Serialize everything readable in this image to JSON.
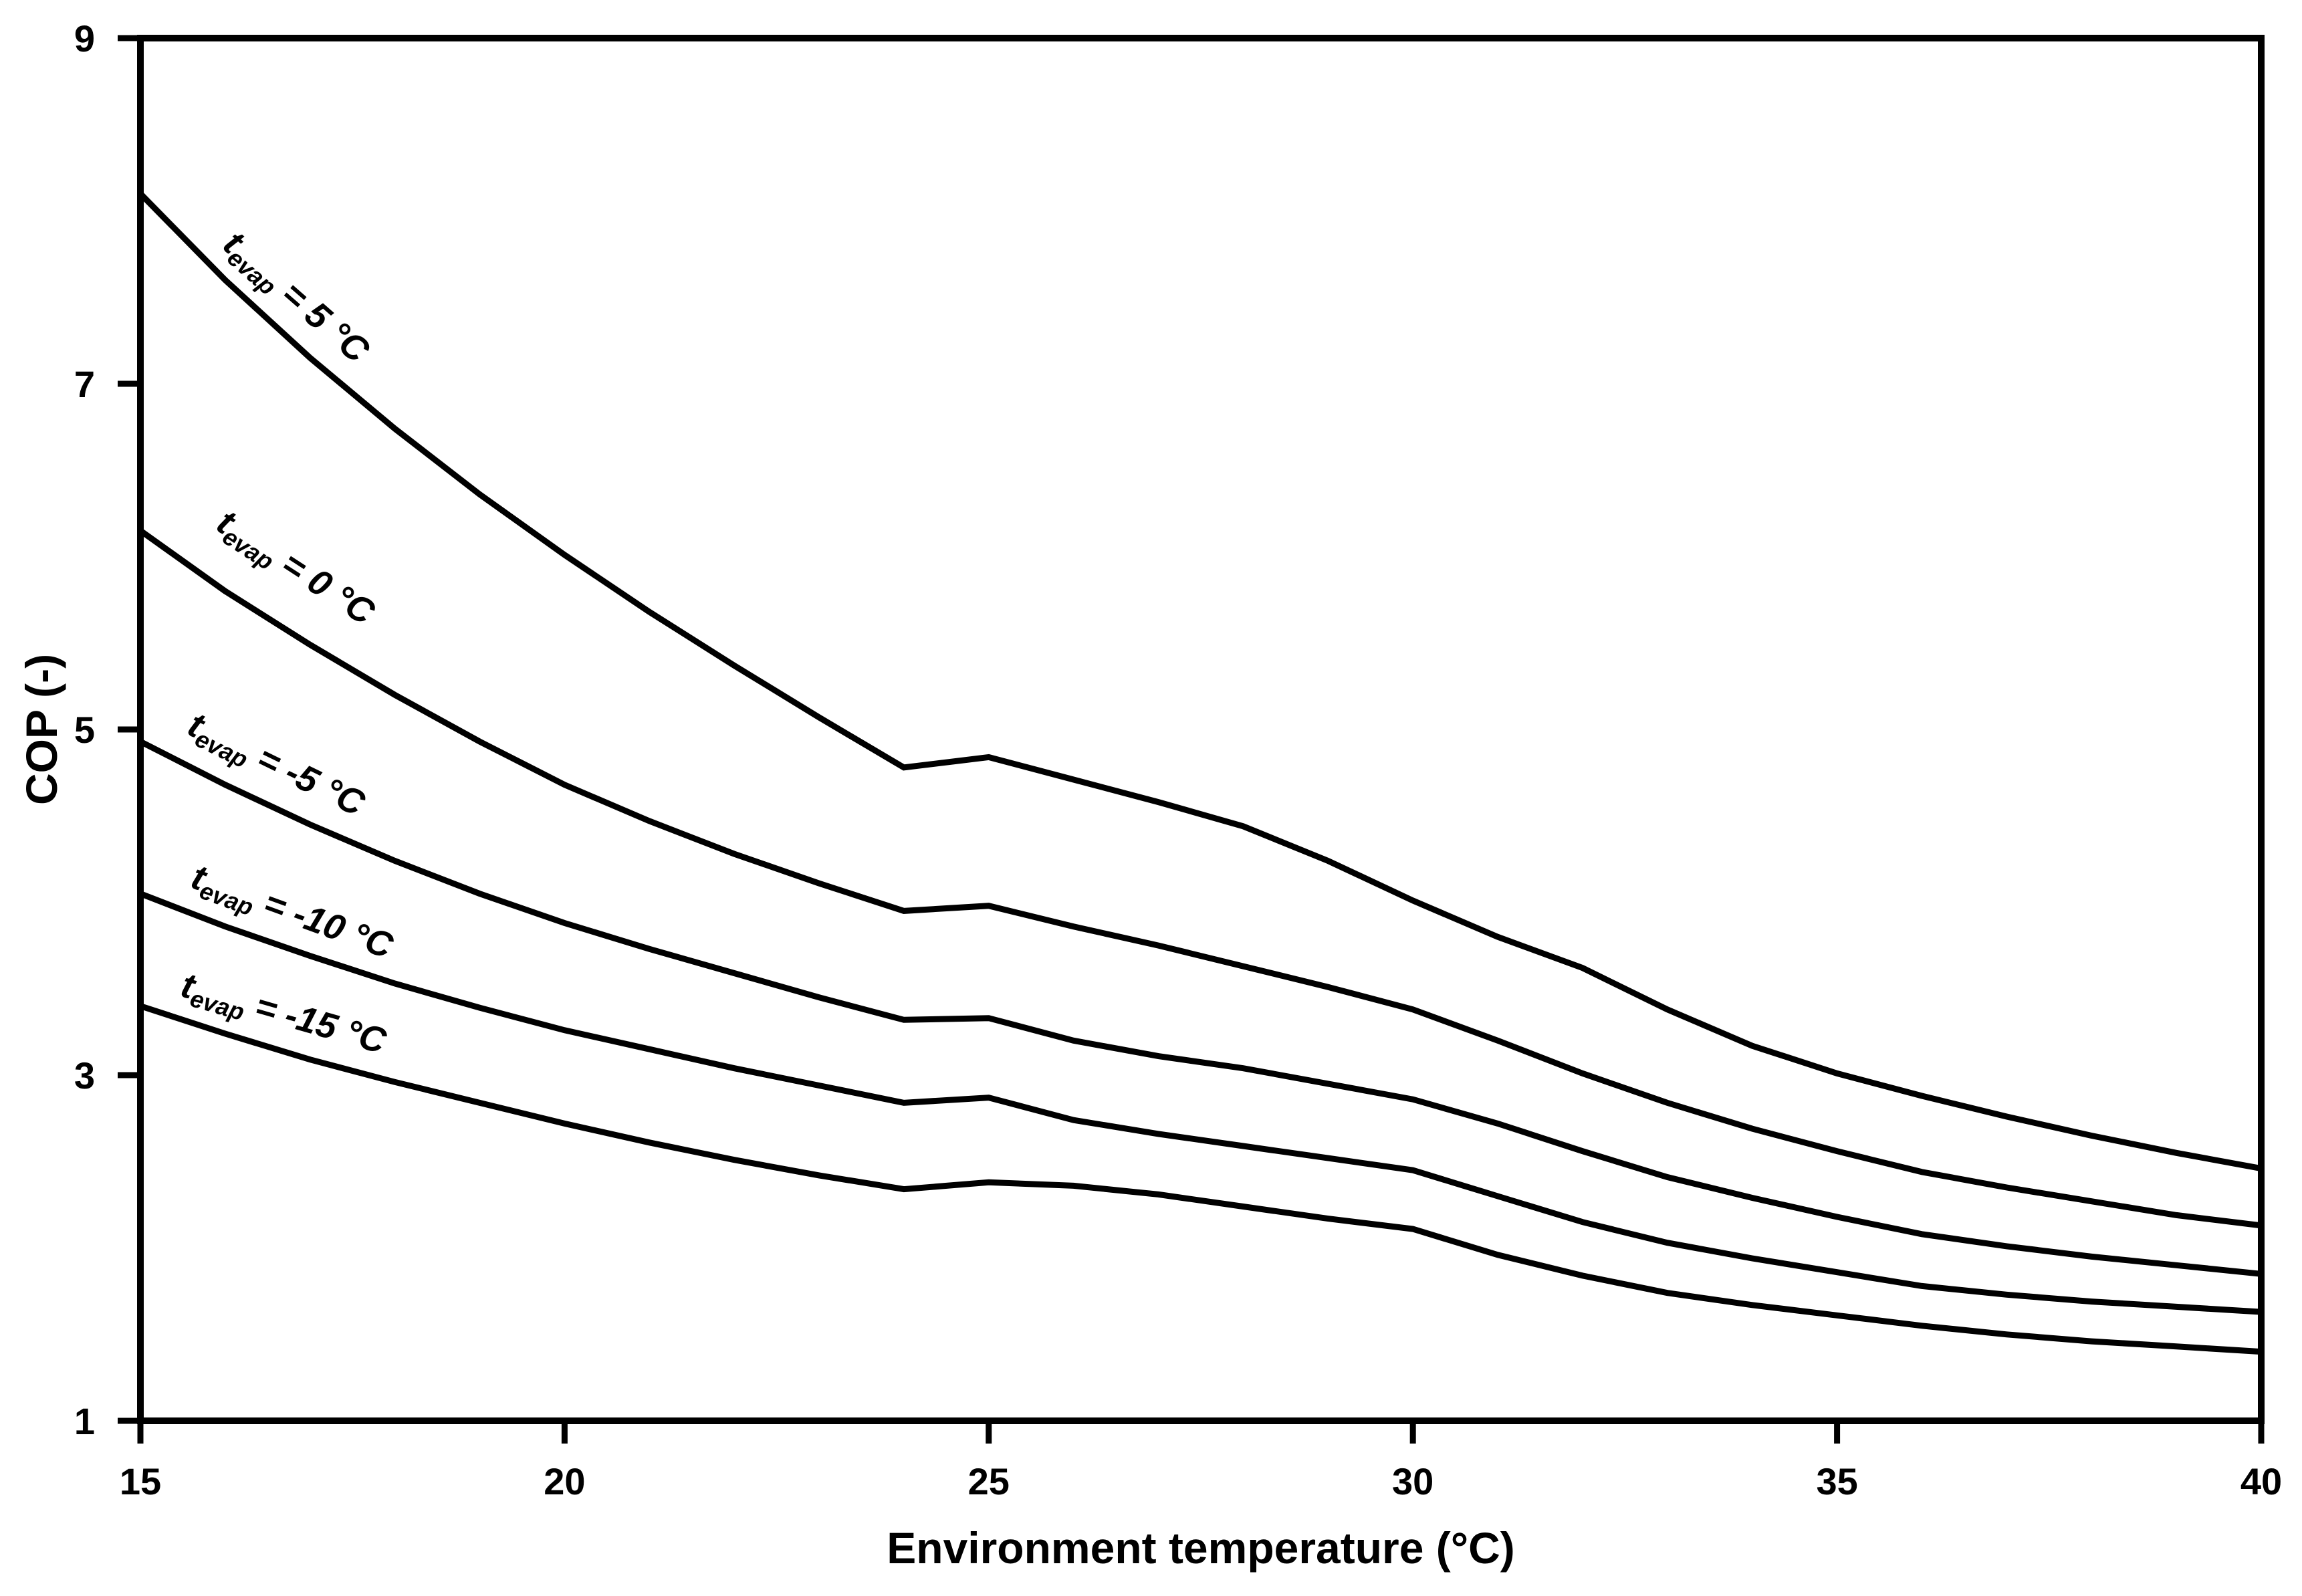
{
  "figure": {
    "background_color": "#ffffff",
    "line_color": "#000000"
  },
  "chart_data": {
    "type": "line",
    "title": "",
    "xlabel": "Environment temperature (°C)",
    "ylabel": "COP (-)",
    "xlim": [
      15,
      40
    ],
    "ylim": [
      1,
      9
    ],
    "x_ticks": [
      15,
      20,
      25,
      30,
      35,
      40
    ],
    "y_ticks": [
      1,
      3,
      5,
      7,
      9
    ],
    "grid": false,
    "legend_position": "labels-along-curves",
    "x": [
      15,
      16,
      17,
      18,
      19,
      20,
      21,
      22,
      23,
      24,
      25,
      26,
      27,
      28,
      29,
      30,
      31,
      32,
      33,
      34,
      35,
      36,
      37,
      38,
      39,
      40
    ],
    "series": [
      {
        "id": "tevap-5",
        "name": "t_evap = 5 °C",
        "label_parts": {
          "var": "t",
          "sub": "evap",
          "rest": " = 5 °C"
        },
        "values": [
          8.1,
          7.6,
          7.15,
          6.74,
          6.36,
          6.01,
          5.68,
          5.37,
          5.07,
          4.78,
          4.84,
          4.71,
          4.58,
          4.44,
          4.24,
          4.01,
          3.8,
          3.62,
          3.38,
          3.17,
          3.01,
          2.88,
          2.76,
          2.65,
          2.55,
          2.46
        ]
      },
      {
        "id": "tevap-0",
        "name": "t_evap = 0 °C",
        "label_parts": {
          "var": "t",
          "sub": "evap",
          "rest": " = 0 °C"
        },
        "values": [
          6.15,
          5.8,
          5.49,
          5.2,
          4.93,
          4.68,
          4.47,
          4.28,
          4.11,
          3.95,
          3.98,
          3.86,
          3.75,
          3.63,
          3.51,
          3.38,
          3.2,
          3.01,
          2.84,
          2.69,
          2.56,
          2.44,
          2.35,
          2.27,
          2.19,
          2.13
        ]
      },
      {
        "id": "tevap-minus5",
        "name": "t_evap = -5 °C",
        "label_parts": {
          "var": "t",
          "sub": "evap",
          "rest": " = -5 °C"
        },
        "values": [
          4.93,
          4.68,
          4.45,
          4.24,
          4.05,
          3.88,
          3.73,
          3.59,
          3.45,
          3.32,
          3.33,
          3.2,
          3.11,
          3.04,
          2.95,
          2.86,
          2.72,
          2.56,
          2.41,
          2.29,
          2.18,
          2.08,
          2.01,
          1.95,
          1.9,
          1.85
        ]
      },
      {
        "id": "tevap-minus10",
        "name": "t_evap = -10 °C",
        "label_parts": {
          "var": "t",
          "sub": "evap",
          "rest": " = -10 °C"
        },
        "values": [
          4.05,
          3.86,
          3.69,
          3.53,
          3.39,
          3.26,
          3.15,
          3.04,
          2.94,
          2.84,
          2.87,
          2.74,
          2.66,
          2.59,
          2.52,
          2.45,
          2.3,
          2.15,
          2.03,
          1.94,
          1.86,
          1.78,
          1.73,
          1.69,
          1.66,
          1.63
        ]
      },
      {
        "id": "tevap-minus15",
        "name": "t_evap = -15 °C",
        "label_parts": {
          "var": "t",
          "sub": "evap",
          "rest": " = -15 °C"
        },
        "values": [
          3.4,
          3.24,
          3.09,
          2.96,
          2.84,
          2.72,
          2.61,
          2.51,
          2.42,
          2.34,
          2.38,
          2.36,
          2.31,
          2.24,
          2.17,
          2.11,
          1.96,
          1.84,
          1.74,
          1.67,
          1.61,
          1.55,
          1.5,
          1.46,
          1.43,
          1.4
        ]
      }
    ]
  }
}
